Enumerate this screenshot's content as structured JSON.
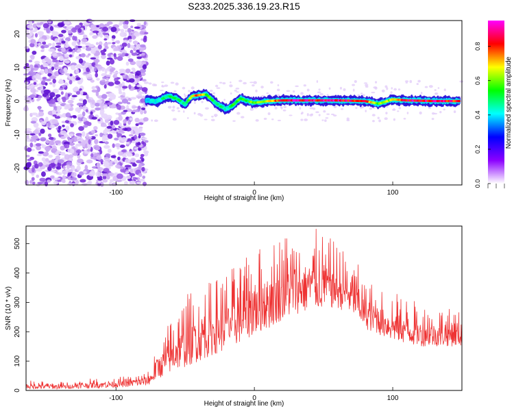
{
  "title": "S233.2025.336.19.23.R15",
  "chart_data": [
    {
      "type": "heatmap",
      "name": "spectrogram",
      "xlabel": "Height of straight line (km)",
      "ylabel": "Frequency (Hz)",
      "xlim": [
        -165,
        150
      ],
      "ylim": [
        -25,
        24
      ],
      "xticks": [
        -100,
        0,
        100
      ],
      "yticks": [
        -20,
        -10,
        0,
        10,
        20
      ],
      "colorbar": {
        "label": "Normalized spectral amplitude",
        "range": [
          0,
          0.95
        ],
        "ticks": [
          "0.0",
          "0.2",
          "0.4",
          "0.6",
          "0.8"
        ],
        "colors": [
          "#ffffff",
          "#8b00ff",
          "#0000ff",
          "#00ffff",
          "#00ff00",
          "#ffff00",
          "#ff0000",
          "#ff00ff"
        ]
      },
      "noise_region_km": [
        -165,
        -78
      ],
      "signal_track": {
        "x": [
          -78,
          -70,
          -62,
          -55,
          -50,
          -45,
          -40,
          -35,
          -30,
          -25,
          -20,
          -15,
          -10,
          -5,
          0,
          10,
          20,
          40,
          60,
          80,
          90,
          100,
          110,
          130,
          148
        ],
        "y": [
          0.3,
          0.0,
          1.5,
          0.5,
          -1.0,
          1.5,
          1.8,
          2.0,
          0.2,
          -1.5,
          -2.5,
          -1.0,
          0.8,
          0.0,
          -0.5,
          0.0,
          0.2,
          0.2,
          0.2,
          0.0,
          -0.8,
          0.5,
          0.2,
          0.0,
          0.0
        ],
        "amplitude": [
          0.4,
          0.45,
          0.55,
          0.5,
          0.5,
          0.7,
          0.85,
          0.6,
          0.55,
          0.5,
          0.45,
          0.55,
          0.6,
          0.55,
          0.65,
          0.7,
          0.9,
          0.9,
          0.9,
          0.85,
          0.6,
          0.7,
          0.9,
          0.9,
          0.85
        ]
      }
    },
    {
      "type": "line",
      "name": "snr",
      "xlabel": "Height of straight line (km)",
      "ylabel": "SNR (10 * v/v)",
      "xlim": [
        -165,
        150
      ],
      "ylim": [
        0,
        560
      ],
      "xticks": [
        -100,
        0,
        100
      ],
      "yticks": [
        0,
        100,
        200,
        300,
        400,
        500
      ],
      "color": "#ee3333",
      "envelope": {
        "x": [
          -165,
          -140,
          -120,
          -100,
          -80,
          -75,
          -70,
          -60,
          -50,
          -40,
          -30,
          -20,
          -10,
          0,
          10,
          20,
          30,
          40,
          50,
          60,
          70,
          75,
          80,
          90,
          100,
          110,
          120,
          130,
          140,
          150
        ],
        "base": [
          5,
          5,
          8,
          10,
          15,
          20,
          40,
          60,
          80,
          100,
          120,
          140,
          160,
          190,
          210,
          240,
          260,
          270,
          280,
          280,
          260,
          240,
          210,
          190,
          170,
          160,
          150,
          150,
          150,
          150
        ],
        "peak": [
          35,
          30,
          40,
          45,
          60,
          80,
          160,
          250,
          330,
          350,
          380,
          410,
          440,
          470,
          520,
          540,
          560,
          560,
          540,
          500,
          460,
          430,
          380,
          360,
          340,
          320,
          300,
          290,
          280,
          270
        ]
      }
    }
  ]
}
